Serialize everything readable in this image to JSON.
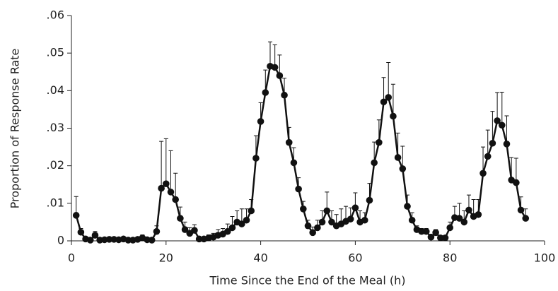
{
  "chart_data": {
    "type": "line",
    "x_label": "Time Since the End of the Meal (h)",
    "y_label": "Proportion of Response Rate",
    "color": "#111111",
    "x": [
      1,
      2,
      3,
      4,
      5,
      6,
      7,
      8,
      9,
      10,
      11,
      12,
      13,
      14,
      15,
      16,
      17,
      18,
      19,
      20,
      21,
      22,
      23,
      24,
      25,
      26,
      27,
      28,
      29,
      30,
      31,
      32,
      33,
      34,
      35,
      36,
      37,
      38,
      39,
      40,
      41,
      42,
      43,
      44,
      45,
      46,
      47,
      48,
      49,
      50,
      51,
      52,
      53,
      54,
      55,
      56,
      57,
      58,
      59,
      60,
      61,
      62,
      63,
      64,
      65,
      66,
      67,
      68,
      69,
      70,
      71,
      72,
      73,
      74,
      75,
      76,
      77,
      78,
      79,
      80,
      81,
      82,
      83,
      84,
      85,
      86,
      87,
      88,
      89,
      90,
      91,
      92,
      93,
      94,
      95,
      96
    ],
    "values": [
      0.0068,
      0.0023,
      0.0005,
      0.0002,
      0.0015,
      0.0002,
      0.0003,
      0.0004,
      0.0004,
      0.0003,
      0.0005,
      0.0002,
      0.0002,
      0.0004,
      0.0008,
      0.0003,
      0.0002,
      0.0025,
      0.014,
      0.0152,
      0.013,
      0.011,
      0.006,
      0.003,
      0.002,
      0.0028,
      0.0005,
      0.0005,
      0.0008,
      0.001,
      0.0015,
      0.0018,
      0.0025,
      0.0035,
      0.005,
      0.0045,
      0.0055,
      0.008,
      0.022,
      0.0318,
      0.0395,
      0.0465,
      0.0462,
      0.044,
      0.0388,
      0.0262,
      0.0208,
      0.0138,
      0.0085,
      0.004,
      0.0022,
      0.0035,
      0.005,
      0.008,
      0.005,
      0.004,
      0.0045,
      0.0052,
      0.0058,
      0.0088,
      0.005,
      0.0055,
      0.0108,
      0.0208,
      0.0262,
      0.037,
      0.0382,
      0.0332,
      0.0222,
      0.0192,
      0.0092,
      0.0055,
      0.003,
      0.0025,
      0.0025,
      0.001,
      0.0022,
      0.0008,
      0.0008,
      0.0035,
      0.0062,
      0.006,
      0.005,
      0.0082,
      0.0065,
      0.007,
      0.018,
      0.0225,
      0.026,
      0.032,
      0.0308,
      0.0258,
      0.0162,
      0.0155,
      0.0082,
      0.006
    ],
    "errors": [
      0.005,
      0.001,
      0.0005,
      0.0005,
      0.001,
      0.0003,
      0.0003,
      0.0003,
      0.0003,
      0.0003,
      0.0004,
      0.0003,
      0.0003,
      0.0004,
      0.0008,
      0.0003,
      0.0003,
      0.0015,
      0.0125,
      0.012,
      0.011,
      0.007,
      0.003,
      0.002,
      0.0015,
      0.0015,
      0.0005,
      0.0005,
      0.0008,
      0.001,
      0.0015,
      0.0015,
      0.002,
      0.003,
      0.003,
      0.004,
      0.003,
      0.003,
      0.006,
      0.005,
      0.006,
      0.0065,
      0.006,
      0.0055,
      0.0045,
      0.004,
      0.004,
      0.003,
      0.002,
      0.0015,
      0.0015,
      0.002,
      0.003,
      0.005,
      0.003,
      0.003,
      0.004,
      0.004,
      0.003,
      0.004,
      0.003,
      0.002,
      0.0045,
      0.0055,
      0.006,
      0.0065,
      0.0093,
      0.0085,
      0.0065,
      0.006,
      0.003,
      0.002,
      0.001,
      0.0008,
      0.0008,
      0.0005,
      0.0008,
      0.0005,
      0.0005,
      0.0015,
      0.003,
      0.004,
      0.003,
      0.004,
      0.0045,
      0.004,
      0.007,
      0.007,
      0.0085,
      0.0075,
      0.0088,
      0.0075,
      0.006,
      0.0065,
      0.0035,
      0.0025
    ],
    "xlim": [
      0,
      100
    ],
    "xticks": [
      0,
      20,
      40,
      60,
      80,
      100
    ],
    "ylim": [
      0,
      0.06
    ],
    "yticks": [
      0,
      {
        "value": 0.01,
        "label": ".01"
      },
      {
        "value": 0.02,
        "label": ".02"
      },
      {
        "value": 0.03,
        "label": ".03"
      },
      {
        "value": 0.04,
        "label": ".04"
      },
      {
        "value": 0.05,
        "label": ".05"
      },
      {
        "value": 0.06,
        "label": ".06"
      }
    ]
  }
}
